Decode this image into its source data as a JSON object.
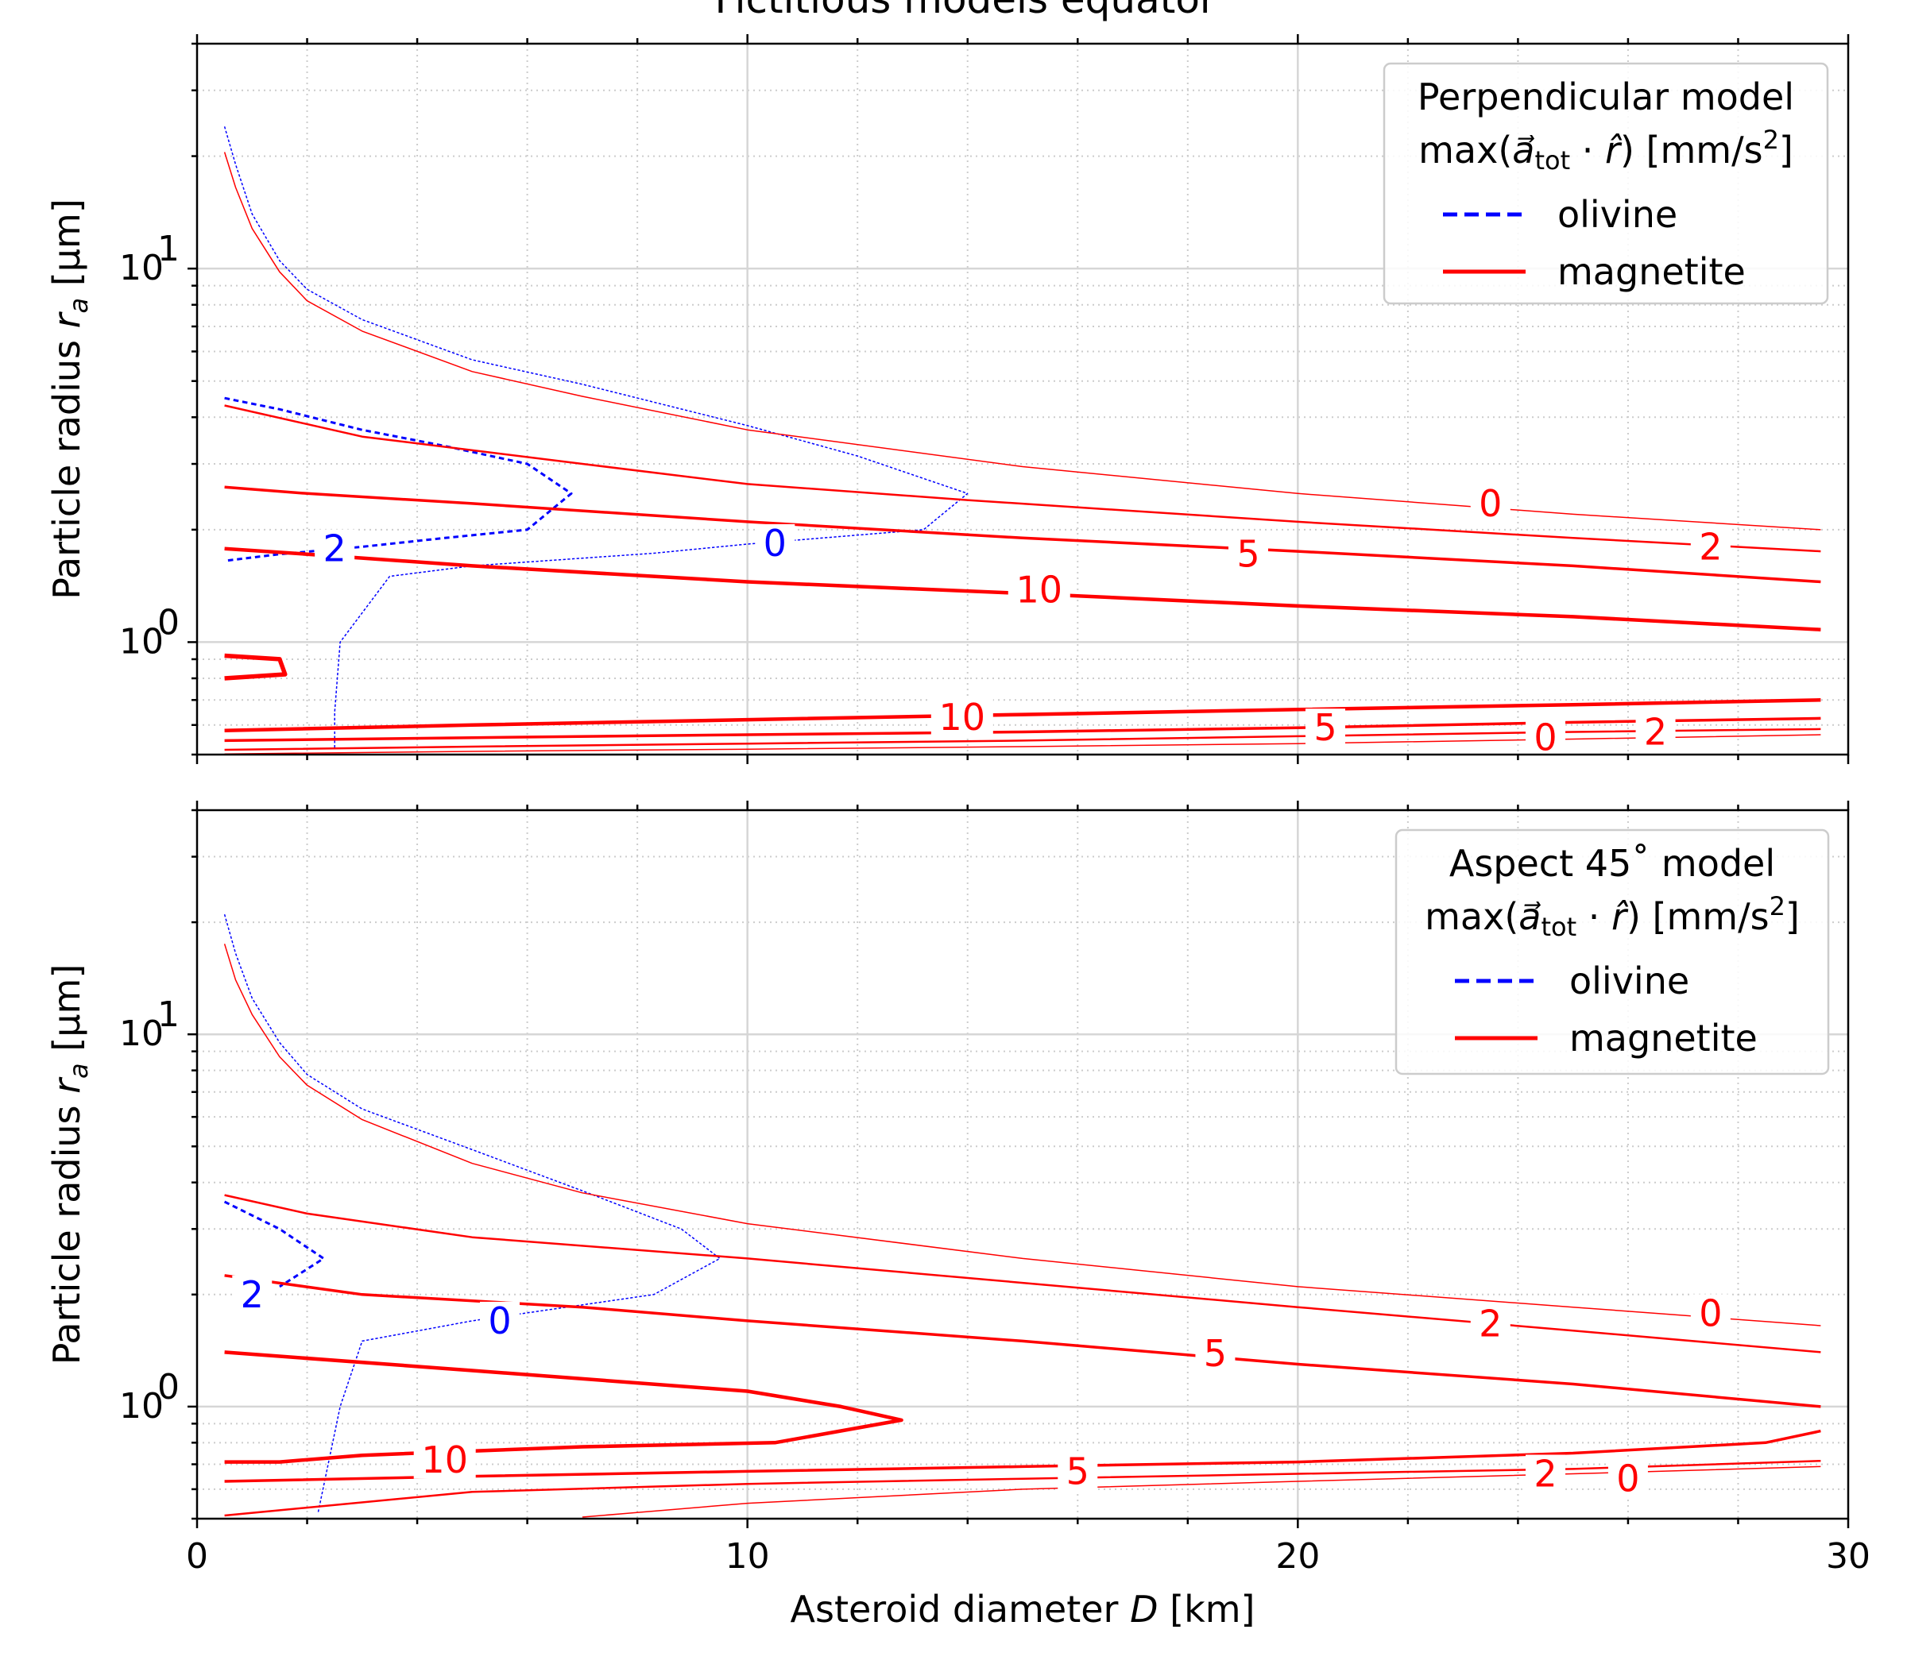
{
  "chart_data": [
    {
      "type": "line",
      "title": "Fictitious models equator",
      "xlabel": "",
      "ylabel": "Particle radius r_a [µm]",
      "ylabel_main": "Particle radius ",
      "ylabel_var": "r",
      "ylabel_sub": "a",
      "ylabel_units": " [µm]",
      "xlim": [
        0,
        30
      ],
      "ylim": [
        0.5,
        40
      ],
      "yscale": "log",
      "grid": true,
      "legend_position": "top-right",
      "legend_title_line1": "Perpendicular model",
      "legend_title_line2": "max(a⃗tot · r̂) [mm/s2]",
      "legend_title_line2_prefix": "max(",
      "legend_title_line2_a": "a⃗",
      "legend_title_line2_sub": "tot",
      "legend_title_line2_mid": " · ",
      "legend_title_line2_r": "r̂",
      "legend_title_line2_suffix": ") [mm/s",
      "legend_title_line2_sup": "2",
      "legend_title_line2_close": "]",
      "x_ticks": [
        0,
        10,
        20,
        30
      ],
      "x_tick_labels": [
        "0",
        "10",
        "20",
        "30"
      ],
      "y_ticks": [
        1,
        10
      ],
      "y_tick_labels_base": [
        "10",
        "10"
      ],
      "y_tick_labels_exp": [
        "0",
        "1"
      ],
      "series": [
        {
          "name": "olivine",
          "color": "#0000ff",
          "dash": true,
          "level": 0,
          "width": 1.5,
          "x": [
            0.5,
            0.7,
            1.0,
            1.5,
            2.0,
            3.0,
            5.0,
            7.0,
            10.0,
            12.0,
            14.0,
            13.2,
            10.0,
            8.3,
            5.0,
            3.5,
            2.6,
            2.5,
            2.5
          ],
          "y": [
            24,
            19,
            14,
            10.5,
            8.8,
            7.3,
            5.7,
            4.9,
            3.8,
            3.15,
            2.5,
            2.0,
            1.83,
            1.73,
            1.6,
            1.5,
            1.0,
            0.65,
            0.52
          ]
        },
        {
          "name": "olivine",
          "color": "#0000ff",
          "dash": true,
          "level": 2,
          "width": 3,
          "x": [
            0.5,
            1.5,
            3.0,
            4.5,
            6.0,
            6.8,
            6.0,
            4.5,
            3.0,
            1.5,
            0.5
          ],
          "y": [
            4.5,
            4.2,
            3.7,
            3.35,
            3.0,
            2.5,
            2.0,
            1.9,
            1.8,
            1.72,
            1.65
          ]
        },
        {
          "name": "magnetite",
          "color": "#ff0000",
          "dash": false,
          "level": 0,
          "width": 1.5,
          "x": [
            0.5,
            0.7,
            1.0,
            1.5,
            2.0,
            3.0,
            5.0,
            7.0,
            10.0,
            15.0,
            20.0,
            25.0,
            29.5
          ],
          "y": [
            20.5,
            16.5,
            12.8,
            9.8,
            8.2,
            6.8,
            5.3,
            4.55,
            3.7,
            2.95,
            2.5,
            2.2,
            2.0
          ]
        },
        {
          "name": "magnetite",
          "color": "#ff0000",
          "dash": false,
          "level": 2,
          "width": 2.5,
          "x": [
            0.5,
            3.0,
            7.0,
            10.0,
            14.0,
            20.0,
            25.0,
            29.5
          ],
          "y": [
            4.3,
            3.55,
            3.0,
            2.65,
            2.4,
            2.1,
            1.9,
            1.75
          ]
        },
        {
          "name": "magnetite",
          "color": "#ff0000",
          "dash": false,
          "level": 5,
          "width": 3.5,
          "x": [
            0.5,
            2.0,
            5.0,
            10.0,
            15.0,
            20.0,
            25.0,
            29.5
          ],
          "y": [
            2.6,
            2.5,
            2.35,
            2.1,
            1.9,
            1.75,
            1.6,
            1.45
          ]
        },
        {
          "name": "magnetite",
          "color": "#ff0000",
          "dash": false,
          "level": 10,
          "width": 4.5,
          "x": [
            0.5,
            2.0,
            5.0,
            10.0,
            15.0,
            20.0,
            25.0,
            29.5
          ],
          "y": [
            1.78,
            1.72,
            1.6,
            1.45,
            1.35,
            1.25,
            1.17,
            1.08
          ]
        },
        {
          "name": "magnetite",
          "color": "#ff0000",
          "dash": false,
          "level": 10,
          "width": 5.5,
          "x": [
            0.5,
            1.5,
            1.6,
            0.5
          ],
          "y": [
            0.92,
            0.9,
            0.82,
            0.8
          ]
        },
        {
          "name": "magnetite",
          "color": "#ff0000",
          "dash": false,
          "level": 10,
          "width": 4.5,
          "x": [
            0.5,
            5.0,
            10.0,
            15.0,
            20.0,
            25.0,
            29.5
          ],
          "y": [
            0.58,
            0.6,
            0.62,
            0.64,
            0.66,
            0.68,
            0.7
          ]
        },
        {
          "name": "magnetite",
          "color": "#ff0000",
          "dash": false,
          "level": 5,
          "width": 3.5,
          "x": [
            0.5,
            5.0,
            10.0,
            15.0,
            20.0,
            25.0,
            29.5
          ],
          "y": [
            0.545,
            0.555,
            0.565,
            0.575,
            0.59,
            0.61,
            0.625
          ]
        },
        {
          "name": "magnetite",
          "color": "#ff0000",
          "dash": false,
          "level": 2,
          "width": 2.5,
          "x": [
            0.5,
            5.0,
            10.0,
            15.0,
            20.0,
            25.0,
            29.5
          ],
          "y": [
            0.515,
            0.525,
            0.535,
            0.545,
            0.56,
            0.575,
            0.585
          ]
        },
        {
          "name": "magnetite",
          "color": "#ff0000",
          "dash": false,
          "level": 0,
          "width": 1.5,
          "x": [
            0.5,
            5.0,
            10.0,
            15.0,
            20.0,
            25.0,
            29.5
          ],
          "y": [
            0.502,
            0.51,
            0.517,
            0.525,
            0.535,
            0.55,
            0.565
          ]
        }
      ],
      "contour_labels": [
        {
          "text": "0",
          "x": 23.5,
          "y": 2.35,
          "color": "#ff0000"
        },
        {
          "text": "2",
          "x": 27.5,
          "y": 1.8,
          "color": "#ff0000"
        },
        {
          "text": "5",
          "x": 19.1,
          "y": 1.72,
          "color": "#ff0000"
        },
        {
          "text": "10",
          "x": 15.3,
          "y": 1.38,
          "color": "#ff0000"
        },
        {
          "text": "2",
          "x": 2.5,
          "y": 1.78,
          "color": "#0000ff"
        },
        {
          "text": "0",
          "x": 10.5,
          "y": 1.84,
          "color": "#0000ff"
        },
        {
          "text": "10",
          "x": 13.9,
          "y": 0.63,
          "color": "#ff0000"
        },
        {
          "text": "5",
          "x": 20.5,
          "y": 0.59,
          "color": "#ff0000"
        },
        {
          "text": "0",
          "x": 24.5,
          "y": 0.555,
          "color": "#ff0000"
        },
        {
          "text": "2",
          "x": 26.5,
          "y": 0.575,
          "color": "#ff0000"
        }
      ]
    },
    {
      "type": "line",
      "title": "",
      "xlabel": "Asteroid diameter D [km]",
      "xlabel_main": "Asteroid diameter ",
      "xlabel_var": "D",
      "xlabel_units": " [km]",
      "ylabel": "Particle radius r_a [µm]",
      "ylabel_main": "Particle radius ",
      "ylabel_var": "r",
      "ylabel_sub": "a",
      "ylabel_units": " [µm]",
      "xlim": [
        0,
        30
      ],
      "ylim": [
        0.5,
        40
      ],
      "yscale": "log",
      "grid": true,
      "legend_position": "top-right",
      "legend_title_line1": "Aspect 45˚ model",
      "legend_title_line2": "max(a⃗tot · r̂) [mm/s2]",
      "legend_title_line2_prefix": "max(",
      "legend_title_line2_a": "a⃗",
      "legend_title_line2_sub": "tot",
      "legend_title_line2_mid": " · ",
      "legend_title_line2_r": "r̂",
      "legend_title_line2_suffix": ") [mm/s",
      "legend_title_line2_sup": "2",
      "legend_title_line2_close": "]",
      "x_ticks": [
        0,
        10,
        20,
        30
      ],
      "x_tick_labels": [
        "0",
        "10",
        "20",
        "30"
      ],
      "y_ticks": [
        1,
        10
      ],
      "y_tick_labels_base": [
        "10",
        "10"
      ],
      "y_tick_labels_exp": [
        "0",
        "1"
      ],
      "series": [
        {
          "name": "olivine",
          "color": "#0000ff",
          "dash": true,
          "level": 0,
          "width": 1.5,
          "x": [
            0.5,
            0.7,
            1.0,
            1.5,
            2.0,
            3.0,
            5.0,
            7.0,
            8.8,
            9.5,
            8.3,
            5.0,
            3.0,
            2.6,
            2.2
          ],
          "y": [
            21,
            16.5,
            12.5,
            9.5,
            7.8,
            6.3,
            4.9,
            3.8,
            3.0,
            2.5,
            2.0,
            1.7,
            1.5,
            1.0,
            0.52
          ]
        },
        {
          "name": "olivine",
          "color": "#0000ff",
          "dash": true,
          "level": 2,
          "width": 3,
          "x": [
            0.5,
            1.5,
            2.3,
            1.5
          ],
          "y": [
            3.55,
            3.0,
            2.5,
            2.1
          ]
        },
        {
          "name": "magnetite",
          "color": "#ff0000",
          "dash": false,
          "level": 0,
          "width": 1.5,
          "x": [
            0.5,
            0.7,
            1.0,
            1.5,
            2.0,
            3.0,
            5.0,
            7.0,
            10.0,
            15.0,
            20.0,
            25.0,
            29.5
          ],
          "y": [
            17.5,
            14,
            11.3,
            8.7,
            7.3,
            5.9,
            4.5,
            3.75,
            3.1,
            2.5,
            2.1,
            1.85,
            1.65
          ]
        },
        {
          "name": "magnetite",
          "color": "#ff0000",
          "dash": false,
          "level": 2,
          "width": 2.5,
          "x": [
            0.5,
            2.0,
            5.0,
            10.0,
            15.0,
            20.0,
            25.0,
            29.5
          ],
          "y": [
            3.7,
            3.3,
            2.85,
            2.5,
            2.15,
            1.85,
            1.6,
            1.4
          ]
        },
        {
          "name": "magnetite",
          "color": "#ff0000",
          "dash": false,
          "level": 5,
          "width": 3.5,
          "x": [
            0.5,
            3.0,
            7.0,
            10.0,
            15.0,
            20.0,
            25.0,
            29.5
          ],
          "y": [
            2.25,
            2.0,
            1.85,
            1.7,
            1.5,
            1.3,
            1.15,
            1.0
          ]
        },
        {
          "name": "magnetite",
          "color": "#ff0000",
          "dash": false,
          "level": 10,
          "width": 4.5,
          "x": [
            0.5,
            5.0,
            10.0,
            11.7,
            12.8,
            10.5,
            7.0,
            3.0,
            1.5,
            0.5
          ],
          "y": [
            1.4,
            1.25,
            1.1,
            1.0,
            0.92,
            0.8,
            0.78,
            0.74,
            0.71,
            0.71
          ]
        },
        {
          "name": "magnetite",
          "color": "#ff0000",
          "dash": false,
          "level": 5,
          "width": 3.5,
          "x": [
            0.5,
            5.0,
            10.0,
            15.0,
            20.0,
            25.0,
            28.5,
            29.5
          ],
          "y": [
            0.63,
            0.65,
            0.67,
            0.69,
            0.71,
            0.75,
            0.8,
            0.86
          ]
        },
        {
          "name": "magnetite",
          "color": "#ff0000",
          "dash": false,
          "level": 2,
          "width": 2.5,
          "x": [
            0.5,
            5.0,
            10.0,
            15.0,
            20.0,
            25.0,
            29.5
          ],
          "y": [
            0.51,
            0.59,
            0.62,
            0.64,
            0.66,
            0.68,
            0.715
          ]
        },
        {
          "name": "magnetite",
          "color": "#ff0000",
          "dash": false,
          "level": 0,
          "width": 1.5,
          "x": [
            7.0,
            10.0,
            15.0,
            20.0,
            25.0,
            29.5
          ],
          "y": [
            0.505,
            0.55,
            0.6,
            0.63,
            0.66,
            0.69
          ]
        }
      ],
      "contour_labels": [
        {
          "text": "0",
          "x": 27.5,
          "y": 1.78,
          "color": "#ff0000"
        },
        {
          "text": "2",
          "x": 23.5,
          "y": 1.67,
          "color": "#ff0000"
        },
        {
          "text": "5",
          "x": 18.5,
          "y": 1.39,
          "color": "#ff0000"
        },
        {
          "text": "10",
          "x": 4.5,
          "y": 0.72,
          "color": "#ff0000"
        },
        {
          "text": "2",
          "x": 1.0,
          "y": 2.0,
          "color": "#0000ff"
        },
        {
          "text": "0",
          "x": 5.5,
          "y": 1.7,
          "color": "#0000ff"
        },
        {
          "text": "5",
          "x": 16.0,
          "y": 0.67,
          "color": "#ff0000"
        },
        {
          "text": "2",
          "x": 24.5,
          "y": 0.66,
          "color": "#ff0000"
        },
        {
          "text": "0",
          "x": 26.0,
          "y": 0.64,
          "color": "#ff0000"
        }
      ]
    }
  ]
}
